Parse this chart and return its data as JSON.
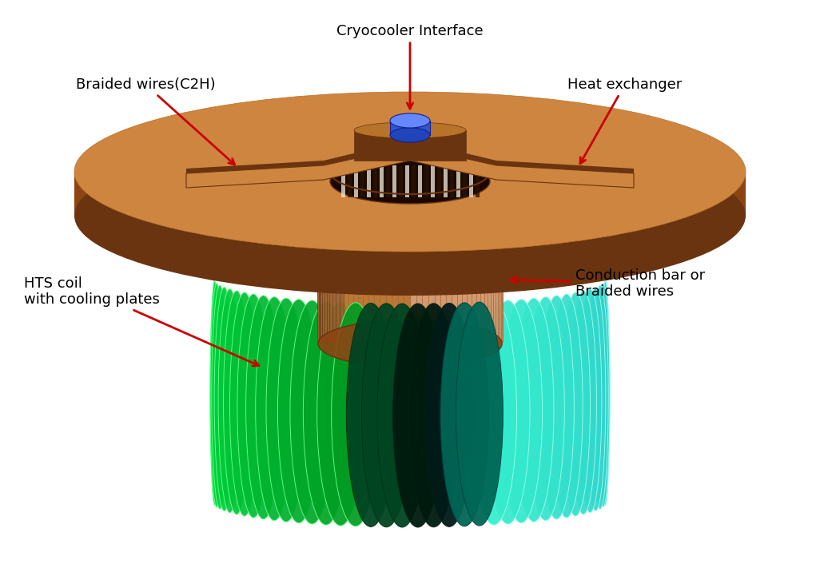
{
  "background_color": "#ffffff",
  "copper_body": "#8B4513",
  "copper_light": "#CD853F",
  "copper_mid": "#B8732A",
  "copper_dark": "#6B3410",
  "copper_fin_light": "#D4956A",
  "copper_fin_dark": "#9B6030",
  "green_bright": "#00DD44",
  "green_mid": "#00AA33",
  "green_dark": "#004422",
  "green_edge": "#66FF88",
  "cyan_bright": "#55EEDD",
  "cyan_mid": "#33BBAA",
  "cyan_dark": "#006655",
  "cyan_edge": "#99FFEE",
  "blue_cryo": "#3355CC",
  "blue_cryo_top": "#6688FF",
  "annotations": [
    {
      "text": "Cryocooler Interface",
      "ha": "center",
      "fontsize": 13
    },
    {
      "text": "Braided wires(C2H)",
      "ha": "left",
      "fontsize": 13
    },
    {
      "text": "Heat exchanger",
      "ha": "left",
      "fontsize": 13
    },
    {
      "text": "Conduction bar or\nBraided wires",
      "ha": "left",
      "fontsize": 13
    },
    {
      "text": "HTS coil\nwith cooling plates",
      "ha": "left",
      "fontsize": 13
    }
  ]
}
